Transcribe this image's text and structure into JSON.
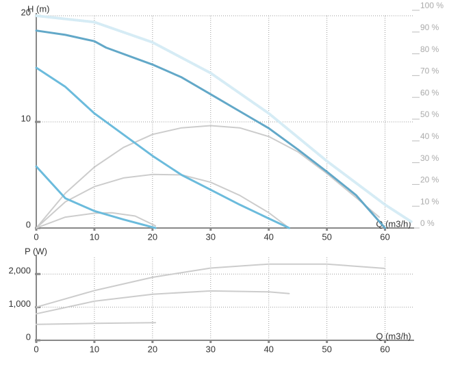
{
  "chart_data": [
    {
      "type": "line",
      "y_label": "H (m)",
      "x_label": "Q (m3/h)",
      "xlim": [
        0,
        65
      ],
      "xticks": [
        0,
        10,
        20,
        30,
        40,
        50,
        60
      ],
      "ylim": [
        0,
        20
      ],
      "yticks": [
        0,
        10,
        20
      ],
      "y2lim": [
        0,
        100
      ],
      "y2ticks": [
        {
          "value": 0,
          "label": "0 %"
        },
        {
          "value": 10,
          "label": "10 %"
        },
        {
          "value": 20,
          "label": "20 %"
        },
        {
          "value": 30,
          "label": "30 %"
        },
        {
          "value": 40,
          "label": "40 %"
        },
        {
          "value": 50,
          "label": "50 %"
        },
        {
          "value": 60,
          "label": "60 %"
        },
        {
          "value": 70,
          "label": "70 %"
        },
        {
          "value": 80,
          "label": "80 %"
        },
        {
          "value": 90,
          "label": "90 %"
        },
        {
          "value": 100,
          "label": "100 %"
        }
      ],
      "grid": true,
      "series": [
        {
          "color": "#d6ecf5",
          "style": "dotted",
          "x": [
            0,
            10,
            20,
            30,
            40,
            50,
            60,
            64.5
          ],
          "values": [
            20,
            19.4,
            17.5,
            14.6,
            10.8,
            6.3,
            2.2,
            0.6
          ]
        },
        {
          "color": "#cccccc",
          "axis": "y2",
          "x": [
            0,
            5,
            10,
            15,
            20,
            25,
            30,
            35,
            40,
            45,
            50,
            55,
            59
          ],
          "values": [
            0,
            16,
            28,
            37,
            43,
            46,
            47,
            46,
            42,
            35,
            25,
            14,
            5
          ]
        },
        {
          "color": "#cccccc",
          "axis": "y2",
          "x": [
            0,
            5,
            10,
            15,
            20,
            25,
            30,
            35,
            40,
            43.5
          ],
          "values": [
            0,
            12,
            19,
            23,
            24.6,
            24.4,
            21,
            15,
            7,
            0
          ]
        },
        {
          "color": "#cccccc",
          "axis": "y2",
          "x": [
            0,
            5,
            10,
            13,
            17,
            20.5
          ],
          "values": [
            0,
            5,
            6.8,
            7,
            5.5,
            1
          ]
        },
        {
          "color": "#62a8c8",
          "x": [
            0,
            5,
            10,
            12,
            20,
            25,
            30,
            35,
            40,
            45,
            50,
            55,
            60
          ],
          "values": [
            18.6,
            18.2,
            17.6,
            17.0,
            15.4,
            14.2,
            12.6,
            11.0,
            9.4,
            7.4,
            5.3,
            3.1,
            0
          ]
        },
        {
          "color": "#6bbbdc",
          "x": [
            0,
            5,
            10,
            15,
            20,
            25,
            30,
            35,
            40,
            43.5
          ],
          "values": [
            15.1,
            13.3,
            10.8,
            8.8,
            6.8,
            5.0,
            3.6,
            2.2,
            0.9,
            0
          ]
        },
        {
          "color": "#6bbbdc",
          "x": [
            0,
            5,
            10,
            15,
            20.5
          ],
          "values": [
            5.8,
            2.8,
            1.6,
            0.8,
            0
          ]
        }
      ]
    },
    {
      "type": "line",
      "y_label": "P (W)",
      "x_label": "Q (m3/h)",
      "xlim": [
        0,
        65
      ],
      "xticks": [
        0,
        10,
        20,
        30,
        40,
        50,
        60
      ],
      "ylim": [
        0,
        2500
      ],
      "yticks": [
        0,
        {
          "value": 1000,
          "label": "1,000"
        },
        {
          "value": 2000,
          "label": "2,000"
        }
      ],
      "grid": true,
      "series": [
        {
          "color": "#cccccc",
          "x": [
            0,
            10,
            20,
            30,
            40,
            50,
            60
          ],
          "values": [
            1000,
            1500,
            1900,
            2180,
            2300,
            2300,
            2170
          ]
        },
        {
          "color": "#cccccc",
          "x": [
            0,
            10,
            20,
            30,
            40,
            43.5
          ],
          "values": [
            800,
            1180,
            1390,
            1490,
            1460,
            1410
          ]
        },
        {
          "color": "#cccccc",
          "x": [
            0,
            10,
            20.5
          ],
          "values": [
            480,
            510,
            530
          ]
        }
      ]
    }
  ]
}
